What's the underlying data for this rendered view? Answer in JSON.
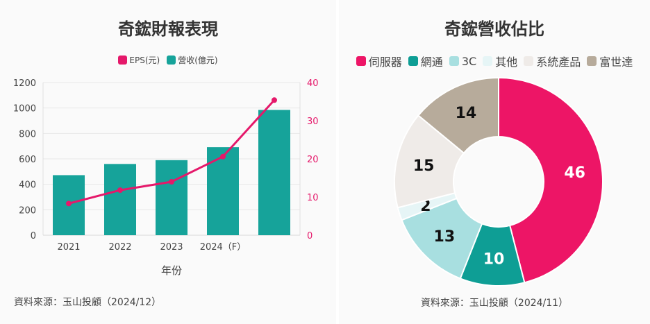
{
  "left_panel": {
    "title": "奇鋐財報表現",
    "source": "資料來源：玉山投顧（2024/12）"
  },
  "right_panel": {
    "title": "奇鋐營收佔比",
    "source": "資料來源：玉山投顧（2024/11）"
  },
  "chart_data": [
    {
      "type": "bar",
      "title": "奇鋐財報表現",
      "xlabel": "年份",
      "categories": [
        "2021",
        "2022",
        "2023",
        "2024（F）",
        ""
      ],
      "series": [
        {
          "name": "營收(億元)",
          "kind": "bar",
          "axis": "left",
          "color": "#16a39a",
          "values": [
            472,
            560,
            590,
            692,
            985
          ]
        },
        {
          "name": "EPS(元)",
          "kind": "line",
          "axis": "right",
          "color": "#e5186a",
          "values": [
            8.3,
            11.8,
            14.0,
            20.6,
            35.4
          ]
        }
      ],
      "ylim_left": [
        0,
        1200
      ],
      "yticks_left": [
        "0",
        "200",
        "400",
        "600",
        "800",
        "1000",
        "1200"
      ],
      "ylim_right": [
        0,
        40
      ],
      "yticks_right": [
        "0",
        "10",
        "20",
        "30",
        "40"
      ],
      "grid": true,
      "legend": "top-center"
    },
    {
      "type": "pie",
      "variant": "donut",
      "title": "奇鋐營收佔比",
      "categories": [
        "伺服器",
        "網通",
        "3C",
        "其他",
        "系統產品",
        "富世達"
      ],
      "values": [
        46,
        10,
        13,
        2,
        15,
        14
      ],
      "labels": [
        "46",
        "10",
        "13",
        "2",
        "15",
        "14"
      ],
      "colors": [
        "#ed1566",
        "#0e9e95",
        "#a8dfe0",
        "#e6f5f6",
        "#efebe8",
        "#b7ab9b"
      ],
      "label_colors": [
        "#ffffff",
        "#ffffff",
        "#111111",
        "#111111",
        "#111111",
        "#111111"
      ],
      "legend": "top-center"
    }
  ]
}
